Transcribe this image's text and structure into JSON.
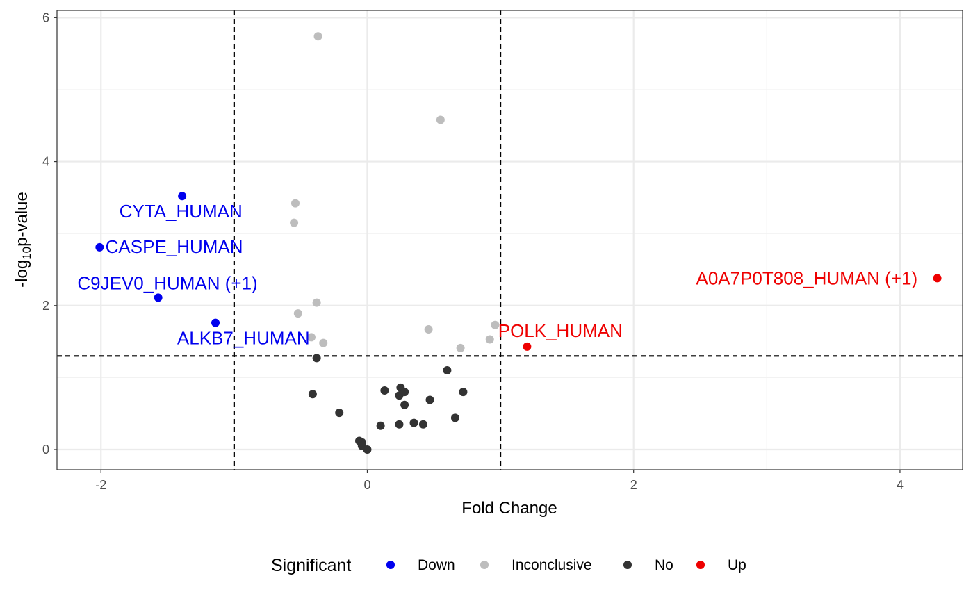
{
  "chart_data": {
    "type": "scatter",
    "xlabel": "Fold Change",
    "ylabel_main": "-log",
    "ylabel_sub": "10",
    "ylabel_tail": "p-value",
    "xlim": [
      -2.33,
      4.47
    ],
    "ylim": [
      -0.28,
      6.1
    ],
    "x_ticks": [
      -2,
      0,
      2,
      4
    ],
    "x_tick_labels": [
      "-2",
      "0",
      "2",
      "4"
    ],
    "y_ticks": [
      0,
      2,
      4,
      6
    ],
    "y_tick_labels": [
      "0",
      "2",
      "4",
      "6"
    ],
    "grid": true,
    "vlines": [
      -1,
      1
    ],
    "hline": 1.3,
    "legend": {
      "title": "Significant",
      "position": "bottom",
      "items": [
        {
          "label": "Down",
          "color": "#0000ee"
        },
        {
          "label": "Inconclusive",
          "color": "#bdbdbd"
        },
        {
          "label": "No",
          "color": "#333333"
        },
        {
          "label": "Up",
          "color": "#ee0000"
        }
      ]
    },
    "colors": {
      "Down": "#0000ee",
      "Inconclusive": "#bdbdbd",
      "No": "#333333",
      "Up": "#ee0000"
    },
    "points": [
      {
        "x": -1.39,
        "y": 3.52,
        "group": "Down"
      },
      {
        "x": -2.01,
        "y": 2.81,
        "group": "Down"
      },
      {
        "x": -1.57,
        "y": 2.11,
        "group": "Down"
      },
      {
        "x": -1.14,
        "y": 1.76,
        "group": "Down"
      },
      {
        "x": -0.37,
        "y": 5.74,
        "group": "Inconclusive"
      },
      {
        "x": 0.55,
        "y": 4.58,
        "group": "Inconclusive"
      },
      {
        "x": -0.54,
        "y": 3.42,
        "group": "Inconclusive"
      },
      {
        "x": -0.55,
        "y": 3.15,
        "group": "Inconclusive"
      },
      {
        "x": -0.38,
        "y": 2.04,
        "group": "Inconclusive"
      },
      {
        "x": -0.52,
        "y": 1.89,
        "group": "Inconclusive"
      },
      {
        "x": 0.46,
        "y": 1.67,
        "group": "Inconclusive"
      },
      {
        "x": 0.96,
        "y": 1.73,
        "group": "Inconclusive"
      },
      {
        "x": 0.92,
        "y": 1.53,
        "group": "Inconclusive"
      },
      {
        "x": 0.7,
        "y": 1.41,
        "group": "Inconclusive"
      },
      {
        "x": -0.33,
        "y": 1.48,
        "group": "Inconclusive"
      },
      {
        "x": -0.42,
        "y": 1.56,
        "group": "Inconclusive"
      },
      {
        "x": -0.38,
        "y": 1.27,
        "group": "No"
      },
      {
        "x": 0.6,
        "y": 1.1,
        "group": "No"
      },
      {
        "x": -0.41,
        "y": 0.77,
        "group": "No"
      },
      {
        "x": 0.13,
        "y": 0.82,
        "group": "No"
      },
      {
        "x": 0.25,
        "y": 0.86,
        "group": "No"
      },
      {
        "x": 0.24,
        "y": 0.75,
        "group": "No"
      },
      {
        "x": 0.28,
        "y": 0.8,
        "group": "No"
      },
      {
        "x": 0.72,
        "y": 0.8,
        "group": "No"
      },
      {
        "x": 0.47,
        "y": 0.69,
        "group": "No"
      },
      {
        "x": 0.28,
        "y": 0.62,
        "group": "No"
      },
      {
        "x": -0.21,
        "y": 0.51,
        "group": "No"
      },
      {
        "x": 0.66,
        "y": 0.44,
        "group": "No"
      },
      {
        "x": 0.35,
        "y": 0.37,
        "group": "No"
      },
      {
        "x": 0.42,
        "y": 0.35,
        "group": "No"
      },
      {
        "x": 0.24,
        "y": 0.35,
        "group": "No"
      },
      {
        "x": 0.1,
        "y": 0.33,
        "group": "No"
      },
      {
        "x": -0.06,
        "y": 0.12,
        "group": "No"
      },
      {
        "x": -0.04,
        "y": 0.1,
        "group": "No"
      },
      {
        "x": -0.04,
        "y": 0.05,
        "group": "No"
      },
      {
        "x": 0.0,
        "y": 0.0,
        "group": "No"
      },
      {
        "x": 1.2,
        "y": 1.43,
        "group": "Up"
      },
      {
        "x": 4.28,
        "y": 2.38,
        "group": "Up"
      }
    ],
    "labels": [
      {
        "text": "CYTA_HUMAN",
        "group": "Down",
        "x": -1.4,
        "y": 3.29
      },
      {
        "text": "CASPE_HUMAN",
        "group": "Down",
        "x": -1.45,
        "y": 2.8
      },
      {
        "text": "C9JEV0_HUMAN (+1)",
        "group": "Down",
        "x": -1.5,
        "y": 2.29
      },
      {
        "text": "ALKB7_HUMAN",
        "group": "Down",
        "x": -0.93,
        "y": 1.53
      },
      {
        "text": "POLK_HUMAN",
        "group": "Up",
        "x": 1.45,
        "y": 1.63
      },
      {
        "text": "A0A7P0T808_HUMAN (+1)",
        "group": "Up",
        "x": 3.3,
        "y": 2.36
      }
    ]
  }
}
